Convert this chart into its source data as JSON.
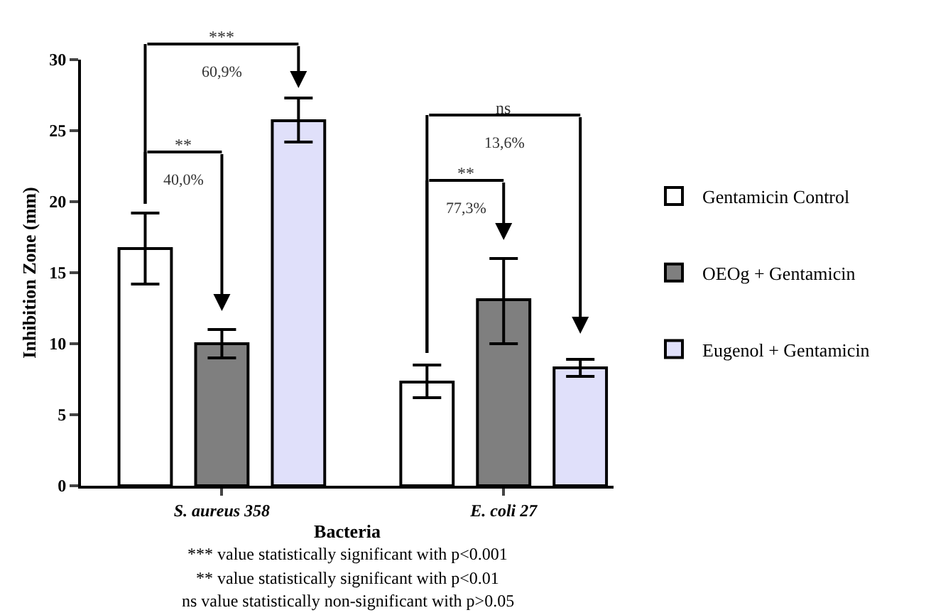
{
  "chart_data": {
    "type": "bar",
    "xlabel": "Bacteria",
    "ylabel": "Inhibition Zone (mm)",
    "categories": [
      "S. aureus 358",
      "E. coli 27"
    ],
    "series": [
      {
        "name": "Gentamicin Control",
        "color": "#ffffff",
        "values": [
          16.7,
          7.3
        ],
        "errors": [
          2.5,
          [
            6.2,
            8.5
          ]
        ]
      },
      {
        "name": "OEOg + Gentamicin",
        "color": "#7f7f7f",
        "values": [
          10.0,
          13.1
        ],
        "errors": [
          1.0,
          [
            10.0,
            16.0
          ]
        ]
      },
      {
        "name": "Eugenol + Gentamicin",
        "color": "#e0e0fa",
        "values": [
          25.7,
          8.3
        ],
        "errors": [
          [
            24.2,
            27.3
          ],
          [
            7.7,
            8.9
          ]
        ]
      }
    ],
    "ylim": [
      0,
      30
    ],
    "yticks": [
      0,
      5,
      10,
      15,
      20,
      25,
      30
    ],
    "legend": "right",
    "annotations": [
      "***",
      "60,9%",
      "**",
      "40,0%",
      "ns",
      "13,6%",
      "**",
      "77,3%",
      "*** value statistically significant with p<0.001",
      "** value statistically significant with p<0.01",
      "ns value statistically non-significant with p>0.05"
    ]
  }
}
